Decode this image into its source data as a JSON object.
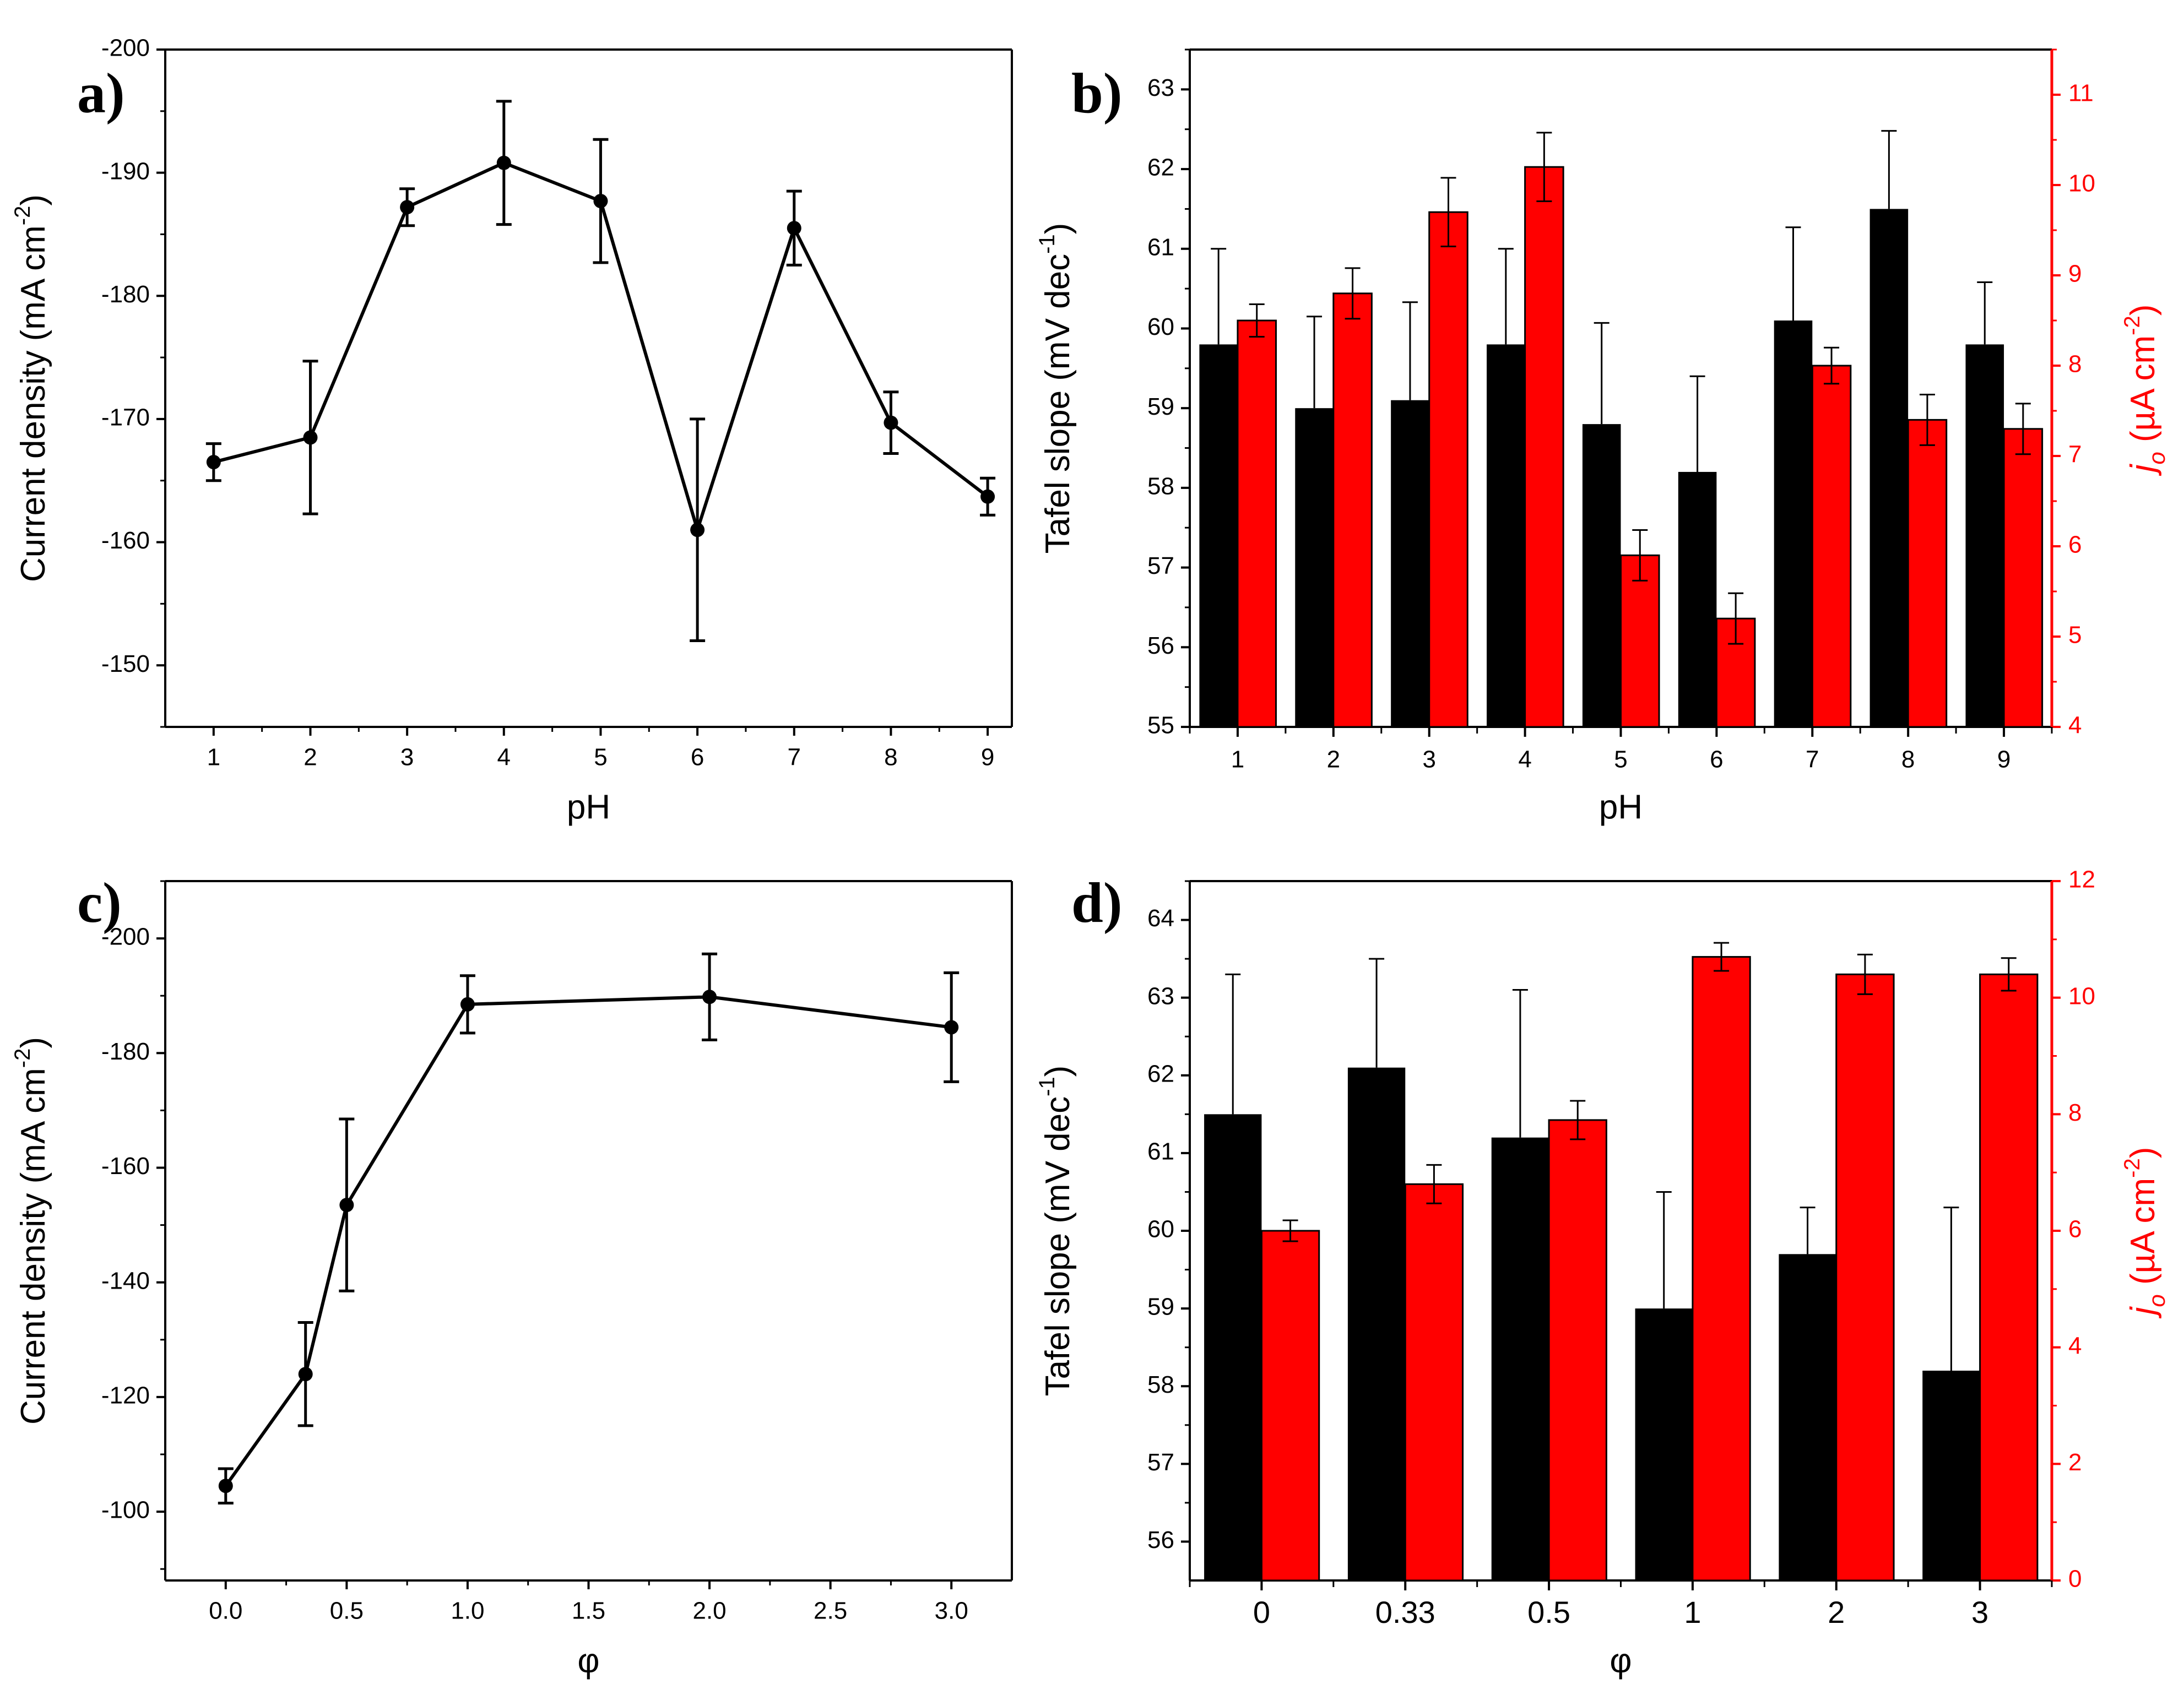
{
  "colors": {
    "axis": "#000000",
    "primary_bar": "#000000",
    "secondary_bar": "#ff0000",
    "secondary_axis": "#ff0000",
    "line": "#000000"
  },
  "chart_data": [
    {
      "id": "a",
      "panel_label": "a)",
      "type": "line",
      "xlabel": "pH",
      "ylabel": "Current density (mA cm",
      "ylabel_sup": "-2",
      "ylabel_end": ")",
      "x": [
        1,
        2,
        3,
        4,
        5,
        6,
        7,
        8,
        9
      ],
      "values": [
        -166.5,
        -168.5,
        -187.2,
        -190.8,
        -187.7,
        -161.0,
        -185.5,
        -169.7,
        -163.7
      ],
      "errors": [
        1.5,
        6.2,
        1.5,
        5.0,
        5.0,
        9.0,
        3.0,
        2.5,
        1.5
      ],
      "xlim": [
        0.5,
        9.25
      ],
      "ylim": [
        -145,
        -200
      ],
      "xticks": [
        1,
        2,
        3,
        4,
        5,
        6,
        7,
        8,
        9
      ],
      "xtick_labels": [
        "1",
        "2",
        "3",
        "4",
        "5",
        "6",
        "7",
        "8",
        "9"
      ],
      "yticks": [
        -150,
        -160,
        -170,
        -180,
        -190,
        -200
      ],
      "ytick_labels": [
        "-150",
        "-160",
        "-170",
        "-180",
        "-190",
        "-200"
      ]
    },
    {
      "id": "b",
      "panel_label": "b)",
      "type": "bar",
      "xlabel": "pH",
      "ylabel": "Tafel slope (mV dec",
      "ylabel_sup": "-1",
      "ylabel_end": ")",
      "y2label_j": "j",
      "y2label_o": "o",
      "y2label": " (µA cm",
      "y2label_sup": "-2",
      "y2label_end": ")",
      "categories": [
        "1",
        "2",
        "3",
        "4",
        "5",
        "6",
        "7",
        "8",
        "9"
      ],
      "series": [
        {
          "name": "Tafel slope",
          "axis": "left",
          "values": [
            59.8,
            59.0,
            59.1,
            59.8,
            58.8,
            58.2,
            60.1,
            61.5,
            59.8
          ],
          "errors": [
            1.2,
            1.15,
            1.23,
            1.2,
            1.27,
            1.2,
            1.17,
            0.98,
            0.78
          ]
        },
        {
          "name": "jo",
          "axis": "right",
          "values": [
            8.5,
            8.8,
            9.7,
            10.2,
            5.9,
            5.2,
            8.0,
            7.4,
            7.3
          ],
          "errors": [
            0.18,
            0.28,
            0.38,
            0.38,
            0.28,
            0.28,
            0.2,
            0.28,
            0.28
          ]
        }
      ],
      "ylim": [
        55,
        63.5
      ],
      "y2lim": [
        4,
        11.5
      ],
      "yticks": [
        55,
        56,
        57,
        58,
        59,
        60,
        61,
        62,
        63
      ],
      "ytick_labels": [
        "55",
        "56",
        "57",
        "58",
        "59",
        "60",
        "61",
        "62",
        "63"
      ],
      "y2ticks": [
        4,
        5,
        6,
        7,
        8,
        9,
        10,
        11
      ],
      "y2tick_labels": [
        "4",
        "5",
        "6",
        "7",
        "8",
        "9",
        "10",
        "11"
      ]
    },
    {
      "id": "c",
      "panel_label": "c)",
      "type": "line",
      "xlabel": "φ",
      "ylabel": "Current density (mA cm",
      "ylabel_sup": "-2",
      "ylabel_end": ")",
      "x": [
        0,
        0.33,
        0.5,
        1.0,
        2.0,
        3.0
      ],
      "values": [
        -104.5,
        -124.0,
        -153.5,
        -188.5,
        -189.8,
        -184.5
      ],
      "errors": [
        3.0,
        9.0,
        15.0,
        5.0,
        7.5,
        9.5
      ],
      "xlim": [
        -0.25,
        3.25
      ],
      "ylim": [
        -88,
        -210
      ],
      "xticks": [
        0,
        0.5,
        1.0,
        1.5,
        2.0,
        2.5,
        3.0
      ],
      "xtick_labels": [
        "0.0",
        "0.5",
        "1.0",
        "1.5",
        "2.0",
        "2.5",
        "3.0"
      ],
      "yticks": [
        -100,
        -120,
        -140,
        -160,
        -180,
        -200
      ],
      "ytick_labels": [
        "-100",
        "-120",
        "-140",
        "-160",
        "-180",
        "-200"
      ]
    },
    {
      "id": "d",
      "panel_label": "d)",
      "type": "bar",
      "xlabel": "φ",
      "ylabel": "Tafel slope (mV dec",
      "ylabel_sup": "-1",
      "ylabel_end": ")",
      "y2label_j": "j",
      "y2label_o": "o",
      "y2label": " (µA cm",
      "y2label_sup": "-2",
      "y2label_end": ")",
      "categories": [
        "0",
        "0.33",
        "0.5",
        "1",
        "2",
        "3"
      ],
      "series": [
        {
          "name": "Tafel slope",
          "axis": "left",
          "values": [
            61.5,
            62.1,
            61.2,
            59.0,
            59.7,
            58.2
          ],
          "errors": [
            1.8,
            1.4,
            1.9,
            1.5,
            0.6,
            2.1
          ]
        },
        {
          "name": "jo",
          "axis": "right",
          "values": [
            6.0,
            6.8,
            7.9,
            10.7,
            10.4,
            10.4
          ],
          "errors": [
            0.18,
            0.33,
            0.33,
            0.24,
            0.34,
            0.28
          ]
        }
      ],
      "ylim": [
        55.5,
        64.5
      ],
      "y2lim": [
        0,
        12
      ],
      "yticks": [
        56,
        57,
        58,
        59,
        60,
        61,
        62,
        63,
        64
      ],
      "ytick_labels": [
        "56",
        "57",
        "58",
        "59",
        "60",
        "61",
        "62",
        "63",
        "64"
      ],
      "y2ticks": [
        0,
        2,
        4,
        6,
        8,
        10,
        12
      ],
      "y2tick_labels": [
        "0",
        "2",
        "4",
        "6",
        "8",
        "10",
        "12"
      ]
    }
  ]
}
